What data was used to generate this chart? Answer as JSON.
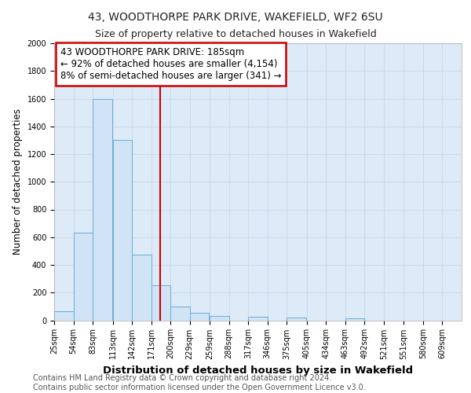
{
  "title1": "43, WOODTHORPE PARK DRIVE, WAKEFIELD, WF2 6SU",
  "title2": "Size of property relative to detached houses in Wakefield",
  "xlabel": "Distribution of detached houses by size in Wakefield",
  "ylabel": "Number of detached properties",
  "footer": "Contains HM Land Registry data © Crown copyright and database right 2024.\nContains public sector information licensed under the Open Government Licence v3.0.",
  "bar_left_edges": [
    25,
    54,
    83,
    113,
    142,
    171,
    200,
    229,
    259,
    288,
    317,
    346,
    375,
    405,
    434,
    463,
    492,
    521,
    551,
    580,
    609
  ],
  "bar_heights": [
    65,
    630,
    1600,
    1300,
    475,
    250,
    100,
    55,
    30,
    0,
    25,
    0,
    20,
    0,
    0,
    15,
    0,
    0,
    0,
    0,
    0
  ],
  "bin_width": 29,
  "bar_color": "#d0e4f5",
  "bar_edge_color": "#6baed6",
  "vline_x": 185,
  "vline_color": "#cc0000",
  "annotation_text": "43 WOODTHORPE PARK DRIVE: 185sqm\n← 92% of detached houses are smaller (4,154)\n8% of semi-detached houses are larger (341) →",
  "annotation_box_color": "#cc0000",
  "annotation_text_color": "#000000",
  "x_tick_labels": [
    "25sqm",
    "54sqm",
    "83sqm",
    "113sqm",
    "142sqm",
    "171sqm",
    "200sqm",
    "229sqm",
    "259sqm",
    "288sqm",
    "317sqm",
    "346sqm",
    "375sqm",
    "405sqm",
    "434sqm",
    "463sqm",
    "492sqm",
    "521sqm",
    "551sqm",
    "580sqm",
    "609sqm"
  ],
  "x_tick_positions": [
    25,
    54,
    83,
    113,
    142,
    171,
    200,
    229,
    259,
    288,
    317,
    346,
    375,
    405,
    434,
    463,
    492,
    521,
    551,
    580,
    609
  ],
  "ylim": [
    0,
    2000
  ],
  "yticks": [
    0,
    200,
    400,
    600,
    800,
    1000,
    1200,
    1400,
    1600,
    1800,
    2000
  ],
  "background_color": "#ffffff",
  "grid_color": "#c8d8e8",
  "title1_fontsize": 10,
  "title2_fontsize": 9,
  "xlabel_fontsize": 9.5,
  "ylabel_fontsize": 8.5,
  "tick_fontsize": 7,
  "footer_fontsize": 7,
  "annotation_fontsize": 8.5
}
